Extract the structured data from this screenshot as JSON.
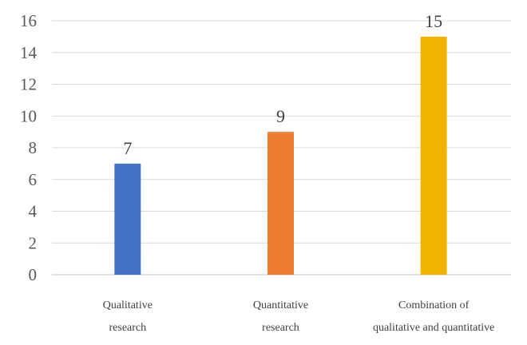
{
  "chart_data": {
    "type": "bar",
    "categories": [
      [
        "Qualitative",
        "research"
      ],
      [
        "Quantitative",
        "research"
      ],
      [
        "Combination of",
        "qualitative and quantitative"
      ]
    ],
    "values": [
      7,
      9,
      15
    ],
    "colors": [
      "#4472c4",
      "#ed7d31",
      "#f0b400"
    ],
    "data_labels": [
      "7",
      "9",
      "15"
    ],
    "y_ticks": [
      "0",
      "2",
      "4",
      "6",
      "8",
      "10",
      "12",
      "14",
      "16"
    ],
    "ylim": [
      0,
      16
    ],
    "grid": true,
    "legend": "none",
    "title": "",
    "xlabel": "",
    "ylabel": ""
  }
}
